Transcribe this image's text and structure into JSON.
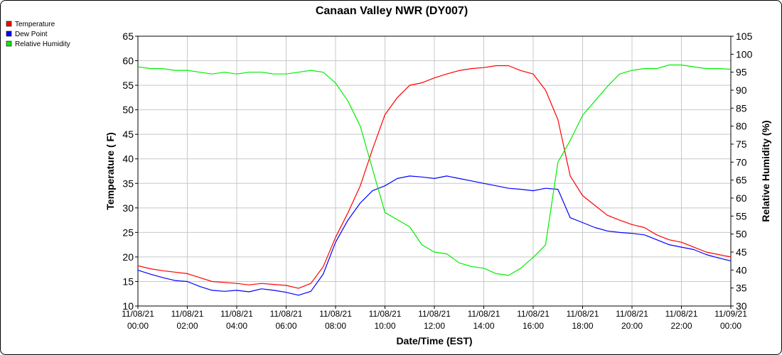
{
  "chart_data": {
    "type": "line",
    "title": "Canaan Valley NWR (DY007)",
    "xlabel": "Date/Time (EST)",
    "ylabel": "Temperature ( F)",
    "y2label": "Relative Humidity (%)",
    "ylim": [
      10,
      65
    ],
    "y2lim": [
      30,
      105
    ],
    "xlim_hours": [
      0,
      24
    ],
    "grid": true,
    "legend_position": "top-left",
    "y_ticks": [
      "10",
      "15",
      "20",
      "25",
      "30",
      "35",
      "40",
      "45",
      "50",
      "55",
      "60",
      "65"
    ],
    "y2_ticks": [
      "30",
      "35",
      "40",
      "45",
      "50",
      "55",
      "60",
      "65",
      "70",
      "75",
      "80",
      "85",
      "90",
      "95",
      "100",
      "105"
    ],
    "x_ticks": [
      {
        "date": "11/08/21",
        "time": "00:00"
      },
      {
        "date": "11/08/21",
        "time": "02:00"
      },
      {
        "date": "11/08/21",
        "time": "04:00"
      },
      {
        "date": "11/08/21",
        "time": "06:00"
      },
      {
        "date": "11/08/21",
        "time": "08:00"
      },
      {
        "date": "11/08/21",
        "time": "10:00"
      },
      {
        "date": "11/08/21",
        "time": "12:00"
      },
      {
        "date": "11/08/21",
        "time": "14:00"
      },
      {
        "date": "11/08/21",
        "time": "16:00"
      },
      {
        "date": "11/08/21",
        "time": "18:00"
      },
      {
        "date": "11/08/21",
        "time": "20:00"
      },
      {
        "date": "11/08/21",
        "time": "22:00"
      },
      {
        "date": "11/09/21",
        "time": "00:00"
      }
    ],
    "series": [
      {
        "name": "Temperature",
        "color": "#ff0000",
        "axis": "left",
        "x": [
          0,
          0.5,
          1,
          1.5,
          2,
          2.5,
          3,
          3.5,
          4,
          4.5,
          5,
          5.5,
          6,
          6.5,
          7,
          7.5,
          8,
          8.5,
          9,
          9.5,
          10,
          10.5,
          11,
          11.5,
          12,
          12.5,
          13,
          13.5,
          14,
          14.5,
          15,
          15.5,
          16,
          16.5,
          17,
          17.5,
          18,
          18.5,
          19,
          19.5,
          20,
          20.5,
          21,
          21.5,
          22,
          22.5,
          23,
          23.5,
          24
        ],
        "values": [
          18.2,
          17.6,
          17.2,
          16.9,
          16.6,
          15.8,
          15.0,
          14.8,
          14.6,
          14.3,
          14.6,
          14.4,
          14.2,
          13.6,
          14.6,
          18.0,
          24.0,
          29.0,
          34.5,
          42.0,
          49.0,
          52.5,
          55.0,
          55.5,
          56.5,
          57.3,
          58.0,
          58.4,
          58.6,
          59.0,
          59.0,
          58.0,
          57.3,
          54.0,
          48.0,
          36.5,
          32.5,
          30.5,
          28.5,
          27.5,
          26.6,
          26.0,
          24.5,
          23.5,
          23.0,
          22.0,
          21.0,
          20.5,
          20.0
        ]
      },
      {
        "name": "Dew Point",
        "color": "#0000ff",
        "axis": "left",
        "x": [
          0,
          0.5,
          1,
          1.5,
          2,
          2.5,
          3,
          3.5,
          4,
          4.5,
          5,
          5.5,
          6,
          6.5,
          7,
          7.5,
          8,
          8.5,
          9,
          9.5,
          10,
          10.5,
          11,
          11.5,
          12,
          12.5,
          13,
          13.5,
          14,
          14.5,
          15,
          15.5,
          16,
          16.5,
          17,
          17.5,
          18,
          18.5,
          19,
          19.5,
          20,
          20.5,
          21,
          21.5,
          22,
          22.5,
          23,
          23.5,
          24
        ],
        "values": [
          17.3,
          16.5,
          15.8,
          15.2,
          15.0,
          14.0,
          13.2,
          13.0,
          13.2,
          12.9,
          13.5,
          13.2,
          12.8,
          12.2,
          13.0,
          16.5,
          23.0,
          27.5,
          31.0,
          33.5,
          34.5,
          36.0,
          36.5,
          36.3,
          36.0,
          36.5,
          36.0,
          35.5,
          35.0,
          34.5,
          34.0,
          33.8,
          33.5,
          34.0,
          33.8,
          28.0,
          27.0,
          26.0,
          25.3,
          25.0,
          24.8,
          24.5,
          23.5,
          22.5,
          22.0,
          21.5,
          20.5,
          19.8,
          19.2
        ]
      },
      {
        "name": "Relative Humidity",
        "color": "#00ee00",
        "axis": "right",
        "x": [
          0,
          0.5,
          1,
          1.5,
          2,
          2.5,
          3,
          3.5,
          4,
          4.5,
          5,
          5.5,
          6,
          6.5,
          7,
          7.5,
          8,
          8.5,
          9,
          9.5,
          10,
          10.5,
          11,
          11.5,
          12,
          12.5,
          13,
          13.5,
          14,
          14.5,
          15,
          15.5,
          16,
          16.5,
          17,
          17.5,
          18,
          18.5,
          19,
          19.5,
          20,
          20.5,
          21,
          21.5,
          22,
          22.5,
          23,
          23.5,
          24
        ],
        "values": [
          96.5,
          96.0,
          96.0,
          95.5,
          95.5,
          95.0,
          94.5,
          95.0,
          94.5,
          95.0,
          95.0,
          94.5,
          94.5,
          95.0,
          95.5,
          95.0,
          92.0,
          87.0,
          80.0,
          68.0,
          56.0,
          54.0,
          52.0,
          47.0,
          45.0,
          44.5,
          42.0,
          41.0,
          40.5,
          39.0,
          38.5,
          40.5,
          43.5,
          47.0,
          70.0,
          76.0,
          83.0,
          87.0,
          91.0,
          94.5,
          95.5,
          96.0,
          96.0,
          97.0,
          97.0,
          96.5,
          96.0,
          96.0,
          95.8
        ]
      }
    ]
  }
}
